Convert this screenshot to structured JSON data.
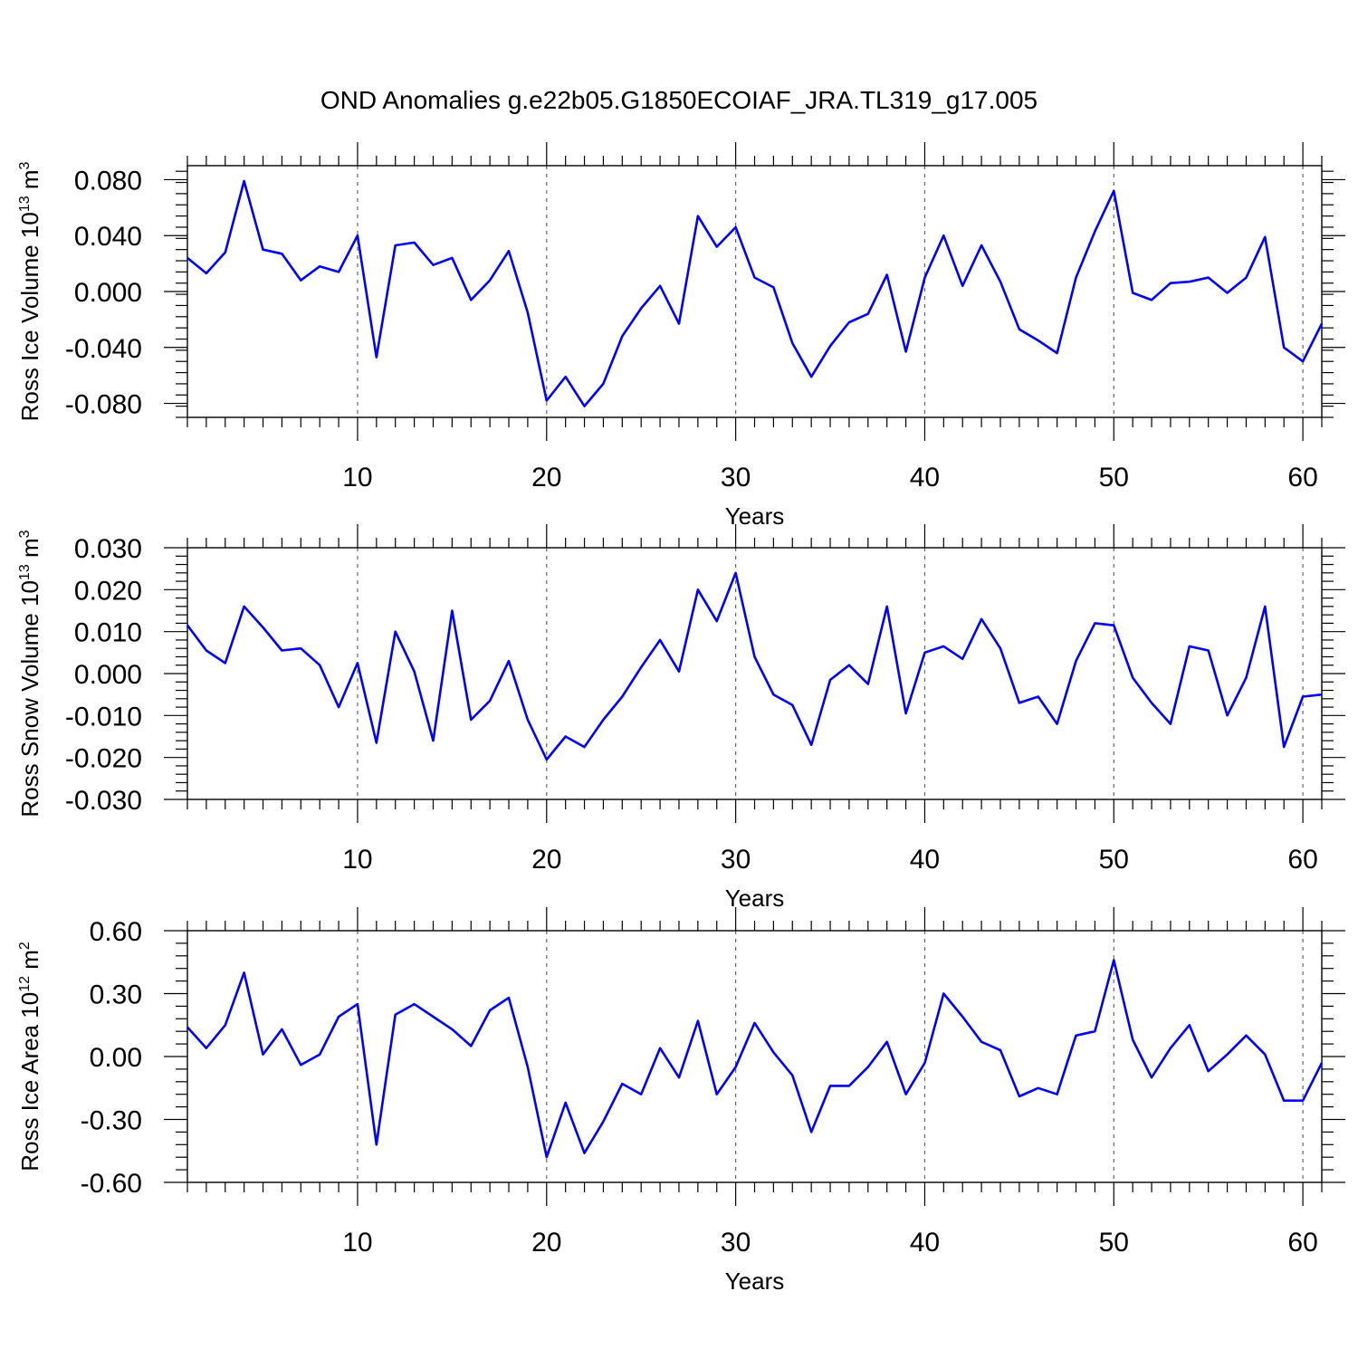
{
  "title": "OND Anomalies g.e22b05.G1850ECOIAF_JRA.TL319_g17.005",
  "line_color": "#0000ff",
  "chart_data": [
    {
      "type": "line",
      "title": "",
      "xlabel": "Years",
      "ylabel": "Ross Ice Volume 10",
      "ylabel_exponent": "13",
      "ylabel_unit": "m",
      "ylabel_unit_exponent": "3",
      "x": [
        1,
        2,
        3,
        4,
        5,
        6,
        7,
        8,
        9,
        10,
        11,
        12,
        13,
        14,
        15,
        16,
        17,
        18,
        19,
        20,
        21,
        22,
        23,
        24,
        25,
        26,
        27,
        28,
        29,
        30,
        31,
        32,
        33,
        34,
        35,
        36,
        37,
        38,
        39,
        40,
        41,
        42,
        43,
        44,
        45,
        46,
        47,
        48,
        49,
        50,
        51,
        52,
        53,
        54,
        55,
        56,
        57,
        58,
        59,
        60,
        61
      ],
      "xlim": [
        1,
        61
      ],
      "ylim": [
        -0.09,
        0.09
      ],
      "xticks": [
        10,
        20,
        30,
        40,
        50,
        60
      ],
      "xtick_labels": [
        "10",
        "20",
        "30",
        "40",
        "50",
        "60"
      ],
      "yticks": [
        -0.08,
        -0.04,
        0,
        0.04,
        0.08
      ],
      "ytick_labels": [
        "-0.080",
        "-0.040",
        "0.000",
        "0.040",
        "0.080"
      ],
      "grid": "vertical dashed at every 10 years",
      "series": [
        {
          "values": [
            0.024,
            0.013,
            0.028,
            0.079,
            0.03,
            0.027,
            0.008,
            0.018,
            0.014,
            0.04,
            -0.047,
            0.033,
            0.035,
            0.019,
            0.024,
            -0.006,
            0.008,
            0.029,
            -0.015,
            -0.078,
            -0.061,
            -0.082,
            -0.066,
            -0.032,
            -0.012,
            0.004,
            -0.023,
            0.054,
            0.032,
            0.046,
            0.01,
            0.003,
            -0.037,
            -0.061,
            -0.039,
            -0.022,
            -0.016,
            0.012,
            -0.043,
            0.01,
            0.04,
            0.004,
            0.033,
            0.007,
            -0.027,
            -0.035,
            -0.044,
            0.01,
            0.043,
            0.072,
            -0.001,
            -0.006,
            0.006,
            0.007,
            0.01,
            -0.001,
            0.01,
            0.039,
            -0.04,
            -0.05,
            -0.023
          ]
        }
      ]
    },
    {
      "type": "line",
      "title": "",
      "xlabel": "Years",
      "ylabel": "Ross Snow Volume 10",
      "ylabel_exponent": "13",
      "ylabel_unit": "m",
      "ylabel_unit_exponent": "3",
      "x": [
        1,
        2,
        3,
        4,
        5,
        6,
        7,
        8,
        9,
        10,
        11,
        12,
        13,
        14,
        15,
        16,
        17,
        18,
        19,
        20,
        21,
        22,
        23,
        24,
        25,
        26,
        27,
        28,
        29,
        30,
        31,
        32,
        33,
        34,
        35,
        36,
        37,
        38,
        39,
        40,
        41,
        42,
        43,
        44,
        45,
        46,
        47,
        48,
        49,
        50,
        51,
        52,
        53,
        54,
        55,
        56,
        57,
        58,
        59,
        60,
        61
      ],
      "xlim": [
        1,
        61
      ],
      "ylim": [
        -0.03,
        0.03
      ],
      "xticks": [
        10,
        20,
        30,
        40,
        50,
        60
      ],
      "xtick_labels": [
        "10",
        "20",
        "30",
        "40",
        "50",
        "60"
      ],
      "yticks": [
        -0.03,
        -0.02,
        -0.01,
        0,
        0.01,
        0.02,
        0.03
      ],
      "ytick_labels": [
        "-0.030",
        "-0.020",
        "-0.010",
        "0.000",
        "0.010",
        "0.020",
        "0.030"
      ],
      "grid": "vertical dashed at every 10 years",
      "series": [
        {
          "values": [
            0.0115,
            0.0055,
            0.0025,
            0.016,
            0.011,
            0.0055,
            0.006,
            0.002,
            -0.008,
            0.0025,
            -0.0165,
            0.01,
            0.0005,
            -0.016,
            0.015,
            -0.011,
            -0.0065,
            0.003,
            -0.011,
            -0.0205,
            -0.015,
            -0.0175,
            -0.011,
            -0.0055,
            0.0015,
            0.008,
            0.0005,
            0.02,
            0.0125,
            0.024,
            0.004,
            -0.005,
            -0.0075,
            -0.017,
            -0.0015,
            0.002,
            -0.0025,
            0.016,
            -0.0095,
            0.005,
            0.0065,
            0.0035,
            0.013,
            0.006,
            -0.007,
            -0.0055,
            -0.012,
            0.003,
            0.012,
            0.0115,
            -0.001,
            -0.007,
            -0.012,
            0.0065,
            0.0055,
            -0.01,
            -0.001,
            0.016,
            -0.0175,
            -0.0055,
            -0.005
          ]
        }
      ]
    },
    {
      "type": "line",
      "title": "",
      "xlabel": "Years",
      "ylabel": "Ross Ice Area 10",
      "ylabel_exponent": "12",
      "ylabel_unit": "m",
      "ylabel_unit_exponent": "2",
      "x": [
        1,
        2,
        3,
        4,
        5,
        6,
        7,
        8,
        9,
        10,
        11,
        12,
        13,
        14,
        15,
        16,
        17,
        18,
        19,
        20,
        21,
        22,
        23,
        24,
        25,
        26,
        27,
        28,
        29,
        30,
        31,
        32,
        33,
        34,
        35,
        36,
        37,
        38,
        39,
        40,
        41,
        42,
        43,
        44,
        45,
        46,
        47,
        48,
        49,
        50,
        51,
        52,
        53,
        54,
        55,
        56,
        57,
        58,
        59,
        60,
        61
      ],
      "xlim": [
        1,
        61
      ],
      "ylim": [
        -0.6,
        0.6
      ],
      "xticks": [
        10,
        20,
        30,
        40,
        50,
        60
      ],
      "xtick_labels": [
        "10",
        "20",
        "30",
        "40",
        "50",
        "60"
      ],
      "yticks": [
        -0.6,
        -0.3,
        0,
        0.3,
        0.6
      ],
      "ytick_labels": [
        "-0.60",
        "-0.30",
        "0.00",
        "0.30",
        "0.60"
      ],
      "grid": "vertical dashed at every 10 years",
      "series": [
        {
          "values": [
            0.14,
            0.04,
            0.15,
            0.4,
            0.01,
            0.13,
            -0.04,
            0.01,
            0.19,
            0.25,
            -0.42,
            0.2,
            0.25,
            0.19,
            0.13,
            0.05,
            0.22,
            0.28,
            -0.05,
            -0.48,
            -0.22,
            -0.46,
            -0.31,
            -0.13,
            -0.18,
            0.04,
            -0.1,
            0.17,
            -0.18,
            -0.05,
            0.16,
            0.02,
            -0.09,
            -0.36,
            -0.14,
            -0.14,
            -0.05,
            0.07,
            -0.18,
            -0.03,
            0.3,
            0.19,
            0.07,
            0.03,
            -0.19,
            -0.15,
            -0.18,
            0.1,
            0.12,
            0.46,
            0.08,
            -0.1,
            0.04,
            0.15,
            -0.07,
            0.01,
            0.1,
            0.01,
            -0.21,
            -0.21,
            -0.03
          ]
        }
      ]
    }
  ]
}
